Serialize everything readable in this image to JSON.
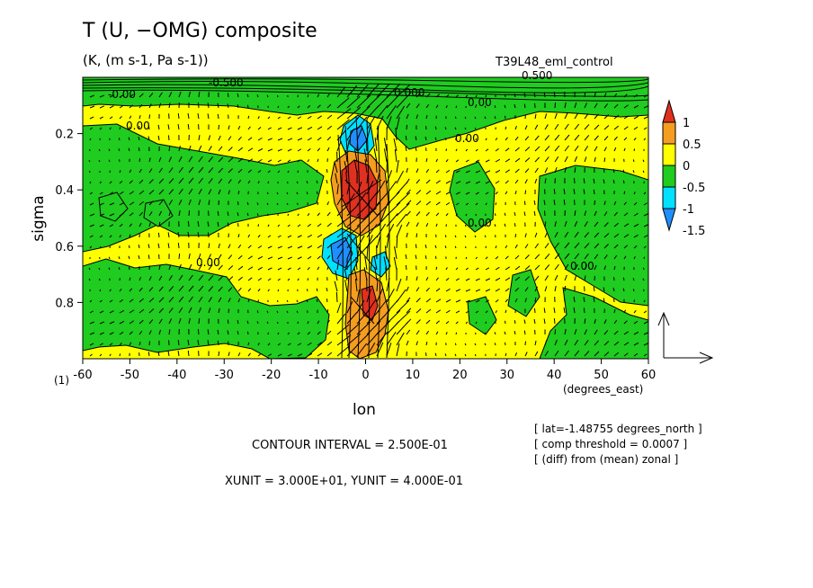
{
  "header": {
    "title": "T (U, −OMG) composite",
    "units": "(K, (m s-1, Pa s-1))",
    "experiment": "T39L48_eml_control"
  },
  "footer": {
    "contour_interval": "CONTOUR INTERVAL = 2.500E-01",
    "vector_units": "XUNIT = 3.000E+01, YUNIT = 4.000E-01",
    "info_lines": [
      "[ lat=-1.48755 degrees_north ]",
      "[ comp threshold = 0.0007 ]",
      "[ (diff) from (mean) zonal ]"
    ]
  },
  "colors": {
    "red": "#e03020",
    "orange": "#f59d1e",
    "yellow": "#ffff00",
    "green": "#1fcc1f",
    "cyan": "#00e0ff",
    "blue": "#1f8fff"
  },
  "chart_data": {
    "type": "heatmap",
    "title": "T (U, −OMG) composite",
    "subtitle": "(K, (m s-1, Pa s-1))",
    "xlabel": "lon",
    "x_unit_label": "(degrees_east)",
    "ylabel": "sigma",
    "sub_label": "(1)",
    "xlim": [
      -60,
      60
    ],
    "ylim": [
      1.0,
      0.0
    ],
    "x_ticks": [
      -60,
      -50,
      -40,
      -30,
      -20,
      -10,
      0,
      10,
      20,
      30,
      40,
      50,
      60
    ],
    "y_ticks": [
      0.2,
      0.4,
      0.6,
      0.8
    ],
    "contour_labels": [
      "0.00",
      "-0.500",
      "0.500",
      "0.000",
      "-0.00"
    ],
    "colorbar": {
      "levels": [
        -1.5,
        -1,
        -0.5,
        0,
        0.5,
        1
      ],
      "labels": [
        "1",
        "0.5",
        "0",
        "-0.5",
        "-1",
        "-1.5"
      ],
      "colors": [
        "#e03020",
        "#f59d1e",
        "#ffff00",
        "#1fcc1f",
        "#00e0ff",
        "#1f8fff"
      ]
    },
    "reference_vector": {
      "x_unit": 30,
      "y_unit": 0.4
    }
  }
}
